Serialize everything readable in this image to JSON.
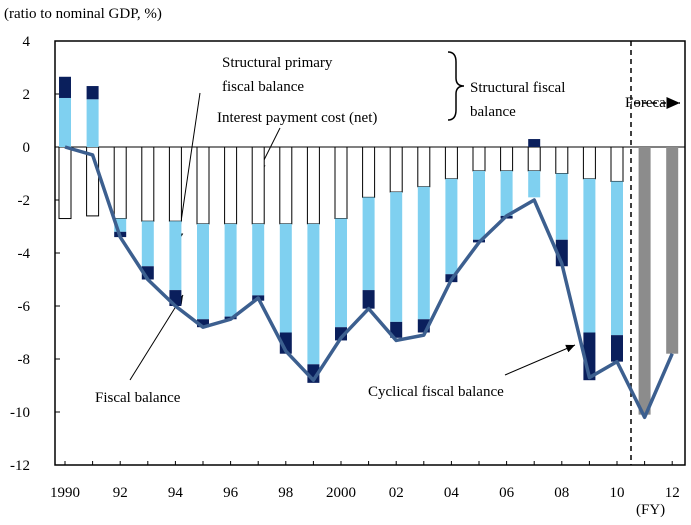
{
  "chart_data": {
    "type": "bar",
    "title": "(ratio to nominal GDP, %)",
    "x_unit": "(FY)",
    "categories": [
      "1990",
      null,
      "92",
      null,
      "94",
      null,
      "96",
      null,
      "98",
      null,
      "2000",
      null,
      "02",
      null,
      "04",
      null,
      "06",
      null,
      "08",
      null,
      "10",
      null,
      "12"
    ],
    "series": [
      {
        "color": "#ffffff",
        "values": [
          -2.7,
          -2.6,
          -2.7,
          -2.8,
          -2.8,
          -2.9,
          -2.9,
          -2.9,
          -2.9,
          -2.9,
          -2.7,
          -1.9,
          -1.7,
          -1.5,
          -1.2,
          -0.9,
          -0.9,
          -0.9,
          -1.0,
          -1.2,
          -1.3,
          null,
          null
        ]
      },
      {
        "color": "#7fd0f0",
        "values": [
          1.85,
          1.8,
          -0.5,
          -1.7,
          -2.6,
          -3.6,
          -3.5,
          -2.7,
          -4.1,
          -5.3,
          -4.1,
          -3.5,
          -4.9,
          -5.0,
          -3.6,
          -2.6,
          -1.7,
          -1.0,
          -2.5,
          -5.8,
          -5.8,
          null,
          null
        ]
      },
      {
        "color": "#0a1f5c",
        "values": [
          0.8,
          0.5,
          -0.2,
          -0.5,
          -0.6,
          -0.3,
          -0.1,
          -0.2,
          -0.8,
          -0.7,
          -0.5,
          -0.7,
          -0.6,
          -0.5,
          -0.3,
          -0.1,
          -0.1,
          0.3,
          -1.0,
          -1.8,
          -1.0,
          null,
          null
        ]
      },
      {
        "color": "#8c8c8c",
        "values": [
          null,
          null,
          null,
          null,
          null,
          null,
          null,
          null,
          null,
          null,
          null,
          null,
          null,
          null,
          null,
          null,
          null,
          null,
          null,
          null,
          null,
          -10.1,
          -7.8
        ]
      },
      {
        "type": "line",
        "color": "#3c5f8f",
        "values": [
          0,
          -0.3,
          -3.4,
          -5.0,
          -6.0,
          -6.8,
          -6.5,
          -5.7,
          -7.7,
          -8.8,
          -7.2,
          -6.1,
          -7.3,
          -7.1,
          -5.0,
          -3.6,
          -2.6,
          -2.0,
          -4.4,
          -8.7,
          -8.1,
          -10.2,
          -7.8
        ]
      }
    ],
    "ylim": [
      -12,
      4
    ],
    "yticks": [
      -12,
      -10,
      -8,
      -6,
      -4,
      -2,
      0,
      2,
      4
    ],
    "annotations": [
      {
        "text": [
          "Structural primary",
          "fiscal balance"
        ]
      },
      {
        "text": [
          "Interest payment cost (net)"
        ]
      },
      {
        "text": [
          "Structural fiscal",
          "balance"
        ]
      },
      {
        "text": [
          "Fiscal balance"
        ]
      },
      {
        "text": [
          "Cyclical fiscal balance"
        ]
      },
      {
        "text": [
          "Foreca"
        ]
      }
    ]
  }
}
